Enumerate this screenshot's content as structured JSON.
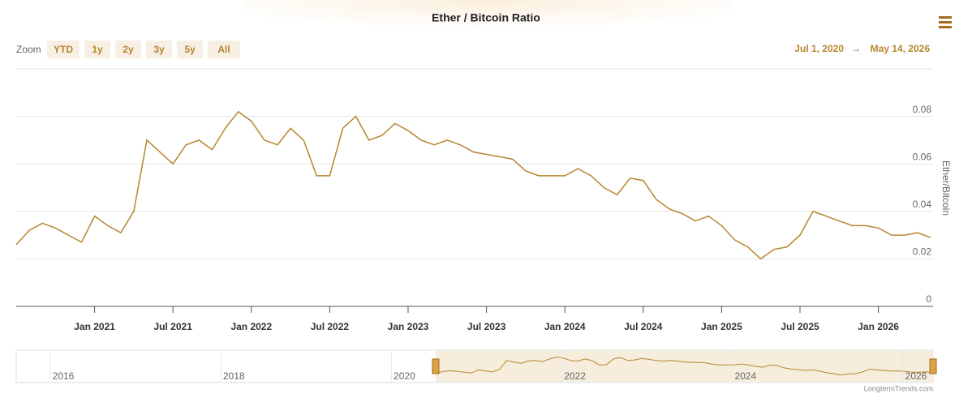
{
  "chart_data": {
    "type": "line",
    "title": "Ether / Bitcoin Ratio",
    "zoom_label": "Zoom",
    "zoom_buttons": [
      "YTD",
      "1y",
      "2y",
      "3y",
      "5y",
      "All"
    ],
    "range_from": "Jul 1, 2020",
    "range_arrow": "→",
    "range_to": "May 14, 2026",
    "y_axis_label": "Ether/Bitcoin",
    "credit": "LongtermTrends.com",
    "x": [
      "2020-07",
      "2020-08",
      "2020-09",
      "2020-10",
      "2020-11",
      "2020-12",
      "2021-01",
      "2021-02",
      "2021-03",
      "2021-04",
      "2021-05",
      "2021-06",
      "2021-07",
      "2021-08",
      "2021-09",
      "2021-10",
      "2021-11",
      "2021-12",
      "2022-01",
      "2022-02",
      "2022-03",
      "2022-04",
      "2022-05",
      "2022-06",
      "2022-07",
      "2022-08",
      "2022-09",
      "2022-10",
      "2022-11",
      "2022-12",
      "2023-01",
      "2023-02",
      "2023-03",
      "2023-04",
      "2023-05",
      "2023-06",
      "2023-07",
      "2023-08",
      "2023-09",
      "2023-10",
      "2023-11",
      "2023-12",
      "2024-01",
      "2024-02",
      "2024-03",
      "2024-04",
      "2024-05",
      "2024-06",
      "2024-07",
      "2024-08",
      "2024-09",
      "2024-10",
      "2024-11",
      "2024-12",
      "2025-01",
      "2025-02",
      "2025-03",
      "2025-04",
      "2025-05",
      "2025-06",
      "2025-07",
      "2025-08",
      "2025-09",
      "2025-10",
      "2025-11",
      "2025-12",
      "2026-01",
      "2026-02",
      "2026-03",
      "2026-04",
      "2026-05"
    ],
    "series": [
      {
        "name": "Ether/Bitcoin",
        "color": "#b7862f",
        "values": [
          0.026,
          0.032,
          0.035,
          0.033,
          0.03,
          0.027,
          0.038,
          0.034,
          0.031,
          0.04,
          0.07,
          0.065,
          0.06,
          0.068,
          0.07,
          0.066,
          0.075,
          0.082,
          0.078,
          0.07,
          0.068,
          0.075,
          0.07,
          0.055,
          0.055,
          0.075,
          0.08,
          0.07,
          0.072,
          0.077,
          0.074,
          0.07,
          0.068,
          0.07,
          0.068,
          0.065,
          0.064,
          0.063,
          0.062,
          0.057,
          0.055,
          0.055,
          0.055,
          0.058,
          0.055,
          0.05,
          0.047,
          0.054,
          0.053,
          0.045,
          0.041,
          0.039,
          0.036,
          0.038,
          0.034,
          0.028,
          0.025,
          0.02,
          0.024,
          0.025,
          0.03,
          0.04,
          0.038,
          0.036,
          0.034,
          0.034,
          0.033,
          0.03,
          0.03,
          0.031,
          0.029
        ]
      }
    ],
    "ylim": [
      0,
      0.1
    ],
    "yticks": [
      0,
      0.02,
      0.04,
      0.06,
      0.08
    ],
    "xticks": [
      {
        "value": "2021-01",
        "label": "Jan 2021"
      },
      {
        "value": "2021-07",
        "label": "Jul 2021"
      },
      {
        "value": "2022-01",
        "label": "Jan 2022"
      },
      {
        "value": "2022-07",
        "label": "Jul 2022"
      },
      {
        "value": "2023-01",
        "label": "Jan 2023"
      },
      {
        "value": "2023-07",
        "label": "Jul 2023"
      },
      {
        "value": "2024-01",
        "label": "Jan 2024"
      },
      {
        "value": "2024-07",
        "label": "Jul 2024"
      },
      {
        "value": "2025-01",
        "label": "Jan 2025"
      },
      {
        "value": "2025-07",
        "label": "Jul 2025"
      },
      {
        "value": "2026-01",
        "label": "Jan 2026"
      }
    ],
    "navigator_ticks": [
      2016,
      2018,
      2020,
      2022,
      2024,
      2026
    ],
    "grid": true
  }
}
